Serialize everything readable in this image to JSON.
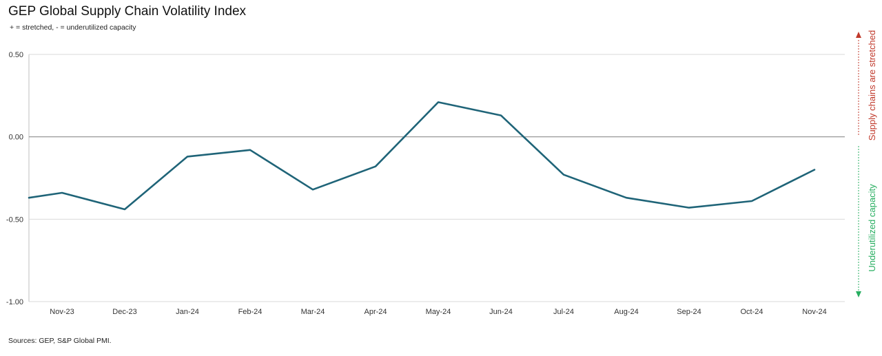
{
  "title": "GEP Global Supply Chain Volatility Index",
  "subtitle": "+ = stretched, - = underutilized capacity",
  "source": "Sources: GEP, S&P Global PMI.",
  "annotations": {
    "stretched": "Supply chains are stretched",
    "underutilized": "Underutilized capacity"
  },
  "colors": {
    "line": "#1f6478",
    "gridline": "#d9d9d9",
    "zeroline": "#8c8c8c",
    "stretched": "#c0392b",
    "underutilized": "#27ae60"
  },
  "chart_data": {
    "type": "line",
    "categories": [
      "Nov-23",
      "Dec-23",
      "Jan-24",
      "Feb-24",
      "Mar-24",
      "Apr-24",
      "May-24",
      "Jun-24",
      "Jul-24",
      "Aug-24",
      "Sep-24",
      "Oct-24",
      "Nov-24"
    ],
    "series": [
      {
        "values": [
          -0.34,
          -0.44,
          -0.12,
          -0.08,
          -0.32,
          -0.18,
          0.21,
          0.13,
          -0.23,
          -0.37,
          -0.43,
          -0.39,
          -0.2
        ]
      }
    ],
    "start_value": -0.37,
    "yticks": [
      0.5,
      0.0,
      -0.5,
      -1.0
    ],
    "ytick_labels": [
      "0.50",
      "0.00",
      "-0.50",
      "-1.00"
    ],
    "ylim": [
      -1.0,
      0.5
    ],
    "grid": true
  }
}
